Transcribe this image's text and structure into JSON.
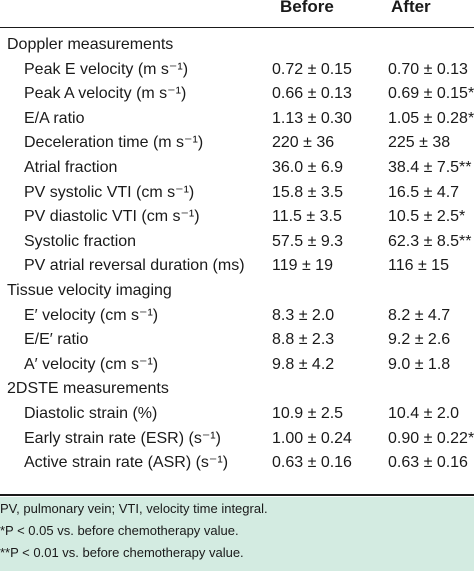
{
  "header": {
    "before": "Before",
    "after": "After"
  },
  "sections": [
    {
      "title": "Doppler measurements",
      "rows": [
        {
          "label": "Peak E velocity (m s⁻¹)",
          "before": "0.72 ± 0.15",
          "after": "0.70 ± 0.13"
        },
        {
          "label": "Peak A velocity (m s⁻¹)",
          "before": "0.66 ± 0.13",
          "after": "0.69 ± 0.15*"
        },
        {
          "label": "E/A ratio",
          "before": "1.13 ± 0.30",
          "after": "1.05 ± 0.28*"
        },
        {
          "label": "Deceleration time (m s⁻¹)",
          "before": "220 ± 36",
          "after": "225 ± 38"
        },
        {
          "label": "Atrial fraction",
          "before": "36.0 ± 6.9",
          "after": "38.4 ± 7.5**"
        },
        {
          "label": "PV systolic VTI (cm s⁻¹)",
          "before": "15.8 ± 3.5",
          "after": "16.5 ± 4.7"
        },
        {
          "label": "PV diastolic VTI (cm s⁻¹)",
          "before": "11.5 ± 3.5",
          "after": "10.5 ± 2.5*"
        },
        {
          "label": "Systolic fraction",
          "before": "57.5 ± 9.3",
          "after": "62.3 ± 8.5**"
        },
        {
          "label": "PV atrial reversal duration (ms)",
          "before": "119 ± 19",
          "after": "116 ± 15"
        }
      ]
    },
    {
      "title": "Tissue velocity imaging",
      "rows": [
        {
          "label": "E′ velocity (cm s⁻¹)",
          "before": "8.3 ± 2.0",
          "after": "8.2 ± 4.7"
        },
        {
          "label": "E/E′ ratio",
          "before": "8.8 ± 2.3",
          "after": "9.2 ± 2.6"
        },
        {
          "label": "A′ velocity (cm s⁻¹)",
          "before": "9.8 ± 4.2",
          "after": "9.0 ± 1.8"
        }
      ]
    },
    {
      "title": "2DSTE measurements",
      "rows": [
        {
          "label": "Diastolic strain (%)",
          "before": "10.9 ± 2.5",
          "after": "10.4 ± 2.0"
        },
        {
          "label": "Early strain rate (ESR) (s⁻¹)",
          "before": "1.00 ± 0.24",
          "after": "0.90 ± 0.22*"
        },
        {
          "label": "Active strain rate (ASR) (s⁻¹)",
          "before": "0.63 ± 0.16",
          "after": "0.63 ± 0.16"
        }
      ]
    }
  ],
  "footnotes": [
    "PV, pulmonary vein; VTI, velocity time integral.",
    "*P < 0.05 vs. before chemotherapy value.",
    "**P < 0.01 vs. before chemotherapy value."
  ],
  "colors": {
    "footer_background": "#d3ebe1",
    "text": "#1a1a1a"
  }
}
